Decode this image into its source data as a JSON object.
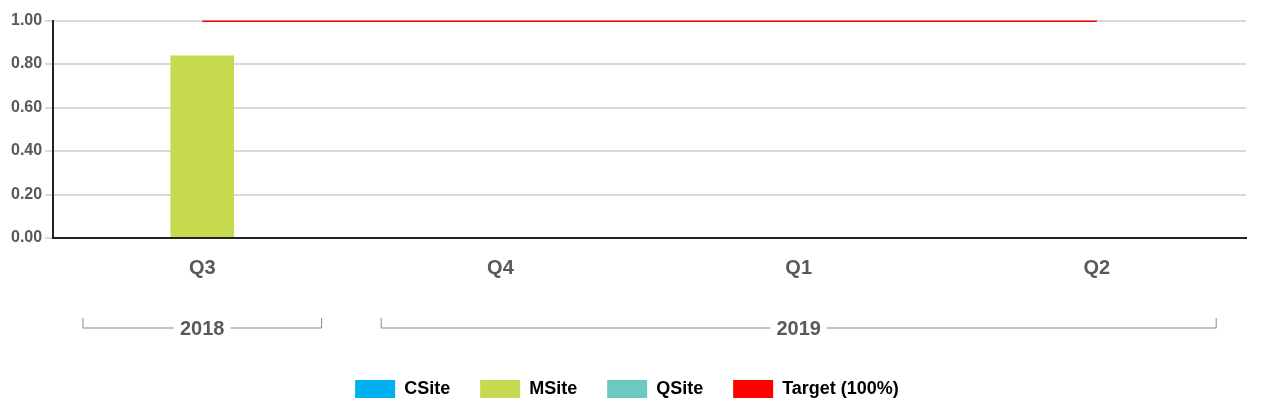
{
  "chart_data": {
    "type": "bar",
    "categories": [
      "Q3",
      "Q4",
      "Q1",
      "Q2"
    ],
    "series": [
      {
        "name": "CSite",
        "color": "#00b0f0",
        "values": [
          null,
          null,
          null,
          null
        ]
      },
      {
        "name": "MSite",
        "color": "#c6d94f",
        "values": [
          0.84,
          null,
          null,
          null
        ]
      },
      {
        "name": "QSite",
        "color": "#6cc9c0",
        "values": [
          null,
          null,
          null,
          null
        ]
      },
      {
        "name": "Target (100%)",
        "type": "line",
        "color": "#ff0000",
        "marker": "none",
        "values": [
          1,
          1,
          1,
          1
        ]
      }
    ],
    "ylim": [
      0,
      1
    ],
    "yticks": [
      {
        "value": 0,
        "label": "0.00"
      },
      {
        "value": 0.2,
        "label": "0.20"
      },
      {
        "value": 0.4,
        "label": "0.40"
      },
      {
        "value": 0.6,
        "label": "0.60"
      },
      {
        "value": 0.8,
        "label": "0.80"
      },
      {
        "value": 1,
        "label": "1.00"
      }
    ],
    "annotations": [
      "2018",
      "2019"
    ],
    "grid": "y",
    "legend": "bottom"
  }
}
